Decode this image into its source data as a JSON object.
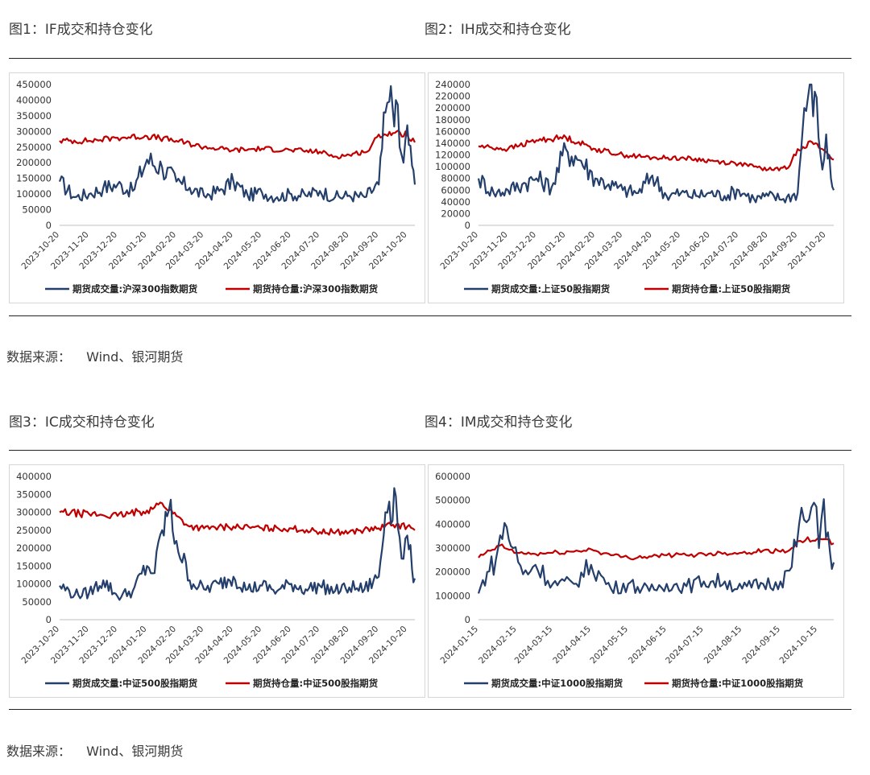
{
  "source_label": "数据来源：",
  "source_text": "Wind、银河期货",
  "colors": {
    "volume": "#243F6B",
    "open_interest": "#C00000"
  },
  "chart_data": [
    {
      "id": "if",
      "title": "图1：IF成交和持仓变化",
      "type": "line",
      "y_ticks": [
        "450000",
        "400000",
        "350000",
        "300000",
        "250000",
        "200000",
        "150000",
        "100000",
        "50000",
        "0"
      ],
      "ylim": [
        0,
        450000
      ],
      "x_tick_labels": [
        "2023-10-20",
        "2023-11-20",
        "2023-12-20",
        "2024-01-20",
        "2024-02-20",
        "2024-03-20",
        "2024-04-20",
        "2024-05-20",
        "2024-06-20",
        "2024-07-20",
        "2024-08-20",
        "2024-09-20",
        "2024-10-20"
      ],
      "x_range": [
        "2023-10-20",
        "2024-10-28"
      ],
      "series": [
        {
          "name": "期货成交量:沪深300指数期货",
          "x": [
            "2023-10-20",
            "2023-11-05",
            "2023-11-20",
            "2023-12-05",
            "2023-12-20",
            "2024-01-05",
            "2024-01-20",
            "2024-02-05",
            "2024-02-20",
            "2024-03-05",
            "2024-03-20",
            "2024-04-05",
            "2024-04-20",
            "2024-05-05",
            "2024-05-20",
            "2024-06-05",
            "2024-06-20",
            "2024-07-05",
            "2024-07-20",
            "2024-08-05",
            "2024-08-20",
            "2024-09-05",
            "2024-09-20",
            "2024-09-27",
            "2024-10-01",
            "2024-10-08",
            "2024-10-12",
            "2024-10-16",
            "2024-10-20",
            "2024-10-25",
            "2024-10-28"
          ],
          "values": [
            140000,
            90000,
            100000,
            120000,
            130000,
            110000,
            210000,
            185000,
            140000,
            120000,
            95000,
            110000,
            140000,
            95000,
            105000,
            90000,
            100000,
            95000,
            110000,
            90000,
            95000,
            90000,
            130000,
            360000,
            395000,
            400000,
            250000,
            200000,
            320000,
            190000,
            130000
          ]
        },
        {
          "name": "期货持仓量:沪深300指数期货",
          "x": [
            "2023-10-20",
            "2023-11-20",
            "2023-12-20",
            "2024-01-20",
            "2024-02-20",
            "2024-03-20",
            "2024-04-20",
            "2024-05-20",
            "2024-06-20",
            "2024-07-20",
            "2024-08-05",
            "2024-08-20",
            "2024-09-10",
            "2024-09-20",
            "2024-10-05",
            "2024-10-20",
            "2024-10-28"
          ],
          "values": [
            270000,
            270000,
            280000,
            285000,
            270000,
            250000,
            240000,
            245000,
            240000,
            235000,
            220000,
            225000,
            240000,
            290000,
            295000,
            290000,
            265000
          ]
        }
      ]
    },
    {
      "id": "ih",
      "title": "图2：IH成交和持仓变化",
      "type": "line",
      "y_ticks": [
        "240000",
        "220000",
        "200000",
        "180000",
        "160000",
        "140000",
        "120000",
        "100000",
        "80000",
        "60000",
        "40000",
        "20000",
        "0"
      ],
      "ylim": [
        0,
        240000
      ],
      "x_tick_labels": [
        "2023-10-20",
        "2023-11-20",
        "2023-12-20",
        "2024-01-20",
        "2024-02-20",
        "2024-03-20",
        "2024-04-20",
        "2024-05-20",
        "2024-06-20",
        "2024-07-20",
        "2024-08-20",
        "2024-09-20",
        "2024-10-20"
      ],
      "x_range": [
        "2023-10-20",
        "2024-10-28"
      ],
      "series": [
        {
          "name": "期货成交量:上证50股指期货",
          "x": [
            "2023-10-20",
            "2023-11-05",
            "2023-11-20",
            "2023-12-05",
            "2023-12-20",
            "2024-01-05",
            "2024-01-20",
            "2024-02-05",
            "2024-02-20",
            "2024-03-05",
            "2024-03-20",
            "2024-04-05",
            "2024-04-20",
            "2024-05-05",
            "2024-05-20",
            "2024-06-05",
            "2024-06-20",
            "2024-07-05",
            "2024-07-20",
            "2024-08-05",
            "2024-08-20",
            "2024-09-05",
            "2024-09-20",
            "2024-09-27",
            "2024-10-01",
            "2024-10-08",
            "2024-10-12",
            "2024-10-16",
            "2024-10-20",
            "2024-10-25",
            "2024-10-28"
          ],
          "values": [
            80000,
            55000,
            60000,
            70000,
            80000,
            65000,
            130000,
            110000,
            80000,
            70000,
            60000,
            55000,
            85000,
            50000,
            55000,
            50000,
            55000,
            50000,
            60000,
            45000,
            50000,
            45000,
            55000,
            200000,
            220000,
            228000,
            150000,
            95000,
            155000,
            80000,
            60000
          ]
        },
        {
          "name": "期货持仓量:上证50股指期货",
          "x": [
            "2023-10-20",
            "2023-11-20",
            "2023-12-20",
            "2024-01-20",
            "2024-02-20",
            "2024-03-20",
            "2024-04-20",
            "2024-05-20",
            "2024-06-20",
            "2024-07-20",
            "2024-08-05",
            "2024-08-20",
            "2024-09-10",
            "2024-09-20",
            "2024-10-05",
            "2024-10-20",
            "2024-10-28"
          ],
          "values": [
            135000,
            130000,
            145000,
            150000,
            130000,
            120000,
            115000,
            115000,
            110000,
            105000,
            100000,
            95000,
            98000,
            130000,
            142000,
            125000,
            112000
          ]
        }
      ]
    },
    {
      "id": "ic",
      "title": "图3：IC成交和持仓变化",
      "type": "line",
      "y_ticks": [
        "400000",
        "350000",
        "300000",
        "250000",
        "200000",
        "150000",
        "100000",
        "50000",
        "0"
      ],
      "ylim": [
        0,
        400000
      ],
      "x_tick_labels": [
        "2023-10-20",
        "2023-11-20",
        "2023-12-20",
        "2024-01-20",
        "2024-02-20",
        "2024-03-20",
        "2024-04-20",
        "2024-05-20",
        "2024-06-20",
        "2024-07-20",
        "2024-08-20",
        "2024-09-20",
        "2024-10-20"
      ],
      "x_range": [
        "2023-10-20",
        "2024-10-28"
      ],
      "series": [
        {
          "name": "期货成交量:中证500股指期货",
          "x": [
            "2023-10-20",
            "2023-11-05",
            "2023-11-20",
            "2023-12-05",
            "2023-12-20",
            "2024-01-05",
            "2024-01-20",
            "2024-01-28",
            "2024-02-05",
            "2024-02-12",
            "2024-02-20",
            "2024-03-05",
            "2024-03-20",
            "2024-04-05",
            "2024-04-20",
            "2024-05-05",
            "2024-05-20",
            "2024-06-05",
            "2024-06-20",
            "2024-07-05",
            "2024-07-20",
            "2024-08-05",
            "2024-08-20",
            "2024-09-05",
            "2024-09-20",
            "2024-09-27",
            "2024-10-01",
            "2024-10-08",
            "2024-10-12",
            "2024-10-16",
            "2024-10-20",
            "2024-10-25",
            "2024-10-28"
          ],
          "values": [
            95000,
            70000,
            75000,
            110000,
            65000,
            80000,
            150000,
            130000,
            250000,
            305000,
            220000,
            110000,
            85000,
            100000,
            120000,
            85000,
            95000,
            80000,
            100000,
            85000,
            95000,
            80000,
            90000,
            85000,
            120000,
            300000,
            330000,
            345000,
            230000,
            170000,
            235000,
            140000,
            115000
          ]
        },
        {
          "name": "期货持仓量:中证500股指期货",
          "x": [
            "2023-10-20",
            "2023-11-20",
            "2023-12-20",
            "2024-01-20",
            "2024-02-05",
            "2024-02-20",
            "2024-03-05",
            "2024-03-20",
            "2024-04-20",
            "2024-05-20",
            "2024-06-20",
            "2024-07-20",
            "2024-08-20",
            "2024-09-20",
            "2024-10-05",
            "2024-10-20",
            "2024-10-28"
          ],
          "values": [
            300000,
            295000,
            290000,
            305000,
            325000,
            290000,
            260000,
            255000,
            260000,
            255000,
            255000,
            245000,
            245000,
            255000,
            265000,
            260000,
            250000
          ]
        }
      ]
    },
    {
      "id": "im",
      "title": "图4：IM成交和持仓变化",
      "type": "line",
      "y_ticks": [
        "600000",
        "500000",
        "400000",
        "300000",
        "200000",
        "100000",
        "0"
      ],
      "ylim": [
        0,
        600000
      ],
      "x_tick_labels": [
        "2024-01-15",
        "2024-02-15",
        "2024-03-15",
        "2024-04-15",
        "2024-05-15",
        "2024-06-15",
        "2024-07-15",
        "2024-08-15",
        "2024-09-15",
        "2024-10-15"
      ],
      "x_range": [
        "2024-01-15",
        "2024-10-28"
      ],
      "series": [
        {
          "name": "期货成交量:中证1000股指期货",
          "x": [
            "2024-01-15",
            "2024-01-22",
            "2024-01-29",
            "2024-02-05",
            "2024-02-12",
            "2024-02-20",
            "2024-03-01",
            "2024-03-15",
            "2024-04-01",
            "2024-04-15",
            "2024-05-01",
            "2024-05-15",
            "2024-06-01",
            "2024-06-15",
            "2024-07-01",
            "2024-07-15",
            "2024-08-01",
            "2024-08-15",
            "2024-09-01",
            "2024-09-15",
            "2024-09-24",
            "2024-09-30",
            "2024-10-08",
            "2024-10-12",
            "2024-10-16",
            "2024-10-20",
            "2024-10-25",
            "2024-10-28"
          ],
          "values": [
            110000,
            200000,
            250000,
            405000,
            300000,
            190000,
            230000,
            150000,
            150000,
            230000,
            130000,
            150000,
            120000,
            150000,
            140000,
            160000,
            160000,
            130000,
            150000,
            160000,
            220000,
            400000,
            420000,
            490000,
            300000,
            505000,
            280000,
            240000
          ]
        },
        {
          "name": "期货持仓量:中证1000股指期货",
          "x": [
            "2024-01-15",
            "2024-02-01",
            "2024-02-15",
            "2024-03-01",
            "2024-03-15",
            "2024-04-01",
            "2024-04-15",
            "2024-05-01",
            "2024-05-15",
            "2024-06-01",
            "2024-06-15",
            "2024-07-01",
            "2024-07-15",
            "2024-08-01",
            "2024-08-15",
            "2024-09-01",
            "2024-09-15",
            "2024-09-24",
            "2024-10-01",
            "2024-10-15",
            "2024-10-28"
          ],
          "values": [
            260000,
            310000,
            280000,
            275000,
            280000,
            285000,
            295000,
            270000,
            260000,
            265000,
            270000,
            270000,
            275000,
            280000,
            280000,
            290000,
            285000,
            300000,
            330000,
            340000,
            320000
          ]
        }
      ]
    }
  ]
}
